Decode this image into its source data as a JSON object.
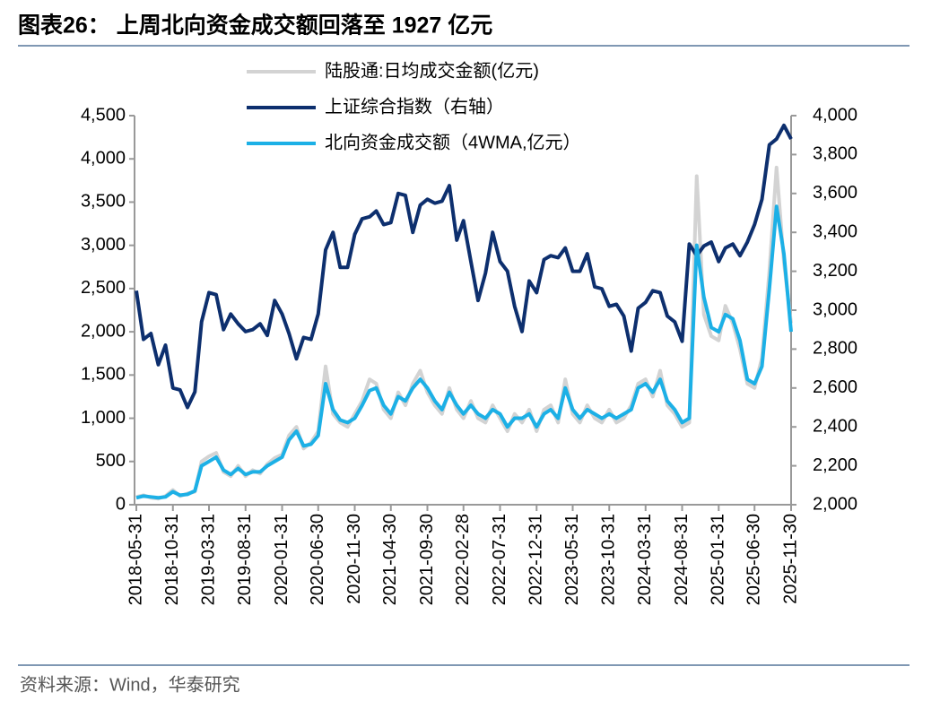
{
  "chart_data": {
    "type": "line",
    "title": "图表26：  上周北向资金成交额回落至 1927 亿元",
    "source": "资料来源：Wind，华泰研究",
    "x": [
      "2018-05-31",
      "2018-06-30",
      "2018-07-31",
      "2018-08-31",
      "2018-09-30",
      "2018-10-31",
      "2018-11-30",
      "2018-12-31",
      "2019-01-31",
      "2019-02-28",
      "2019-03-31",
      "2019-04-30",
      "2019-05-31",
      "2019-06-30",
      "2019-07-31",
      "2019-08-31",
      "2019-09-30",
      "2019-10-31",
      "2019-11-30",
      "2019-12-31",
      "2020-01-31",
      "2020-02-29",
      "2020-03-31",
      "2020-04-30",
      "2020-05-31",
      "2020-06-30",
      "2020-07-31",
      "2020-08-31",
      "2020-09-30",
      "2020-10-31",
      "2020-11-30",
      "2020-12-31",
      "2021-01-31",
      "2021-02-28",
      "2021-03-31",
      "2021-04-30",
      "2021-05-31",
      "2021-06-30",
      "2021-07-31",
      "2021-08-31",
      "2021-09-30",
      "2021-10-31",
      "2021-11-30",
      "2021-12-31",
      "2022-01-31",
      "2022-02-28",
      "2022-03-31",
      "2022-04-30",
      "2022-05-31",
      "2022-06-30",
      "2022-07-31",
      "2022-08-31",
      "2022-09-30",
      "2022-10-31",
      "2022-11-30",
      "2022-12-31",
      "2023-01-31",
      "2023-02-28",
      "2023-03-31",
      "2023-04-30",
      "2023-05-31",
      "2023-06-30",
      "2023-07-31",
      "2023-08-31",
      "2023-09-30",
      "2023-10-31",
      "2023-11-30",
      "2023-12-31",
      "2024-01-31",
      "2024-02-29",
      "2024-03-31",
      "2024-04-30",
      "2024-05-31",
      "2024-06-30",
      "2024-07-31",
      "2024-08-31",
      "2024-09-30",
      "2024-10-31",
      "2024-11-30",
      "2024-12-31",
      "2025-01-31",
      "2025-02-28",
      "2025-03-31",
      "2025-04-30",
      "2025-05-31",
      "2025-06-30",
      "2025-07-31",
      "2025-08-31",
      "2025-09-30",
      "2025-10-31",
      "2025-11-30"
    ],
    "xlim": [
      "2018-05-31",
      "2025-11-30"
    ],
    "xticks": [
      "2018-05-31",
      "2018-10-31",
      "2019-03-31",
      "2019-08-31",
      "2020-01-31",
      "2020-06-30",
      "2020-11-30",
      "2021-04-30",
      "2021-09-30",
      "2022-02-28",
      "2022-07-31",
      "2022-12-31",
      "2023-05-31",
      "2023-10-31",
      "2024-03-31",
      "2024-08-31",
      "2025-01-31",
      "2025-06-30",
      "2025-11-30"
    ],
    "ylim": [
      0,
      4500
    ],
    "yticks": [
      0,
      500,
      {
        "value": 1000,
        "label": "1,000"
      },
      {
        "value": 1500,
        "label": "1,500"
      },
      {
        "value": 2000,
        "label": "2,000"
      },
      {
        "value": 2500,
        "label": "2,500"
      },
      {
        "value": 3000,
        "label": "3,000"
      },
      {
        "value": 3500,
        "label": "3,500"
      },
      {
        "value": 4000,
        "label": "4,000"
      },
      {
        "value": 4500,
        "label": "4,500"
      }
    ],
    "y2lim": [
      2000,
      4000
    ],
    "y2ticks": [
      {
        "value": 2000,
        "label": "2,000"
      },
      {
        "value": 2200,
        "label": "2,200"
      },
      {
        "value": 2400,
        "label": "2,400"
      },
      {
        "value": 2600,
        "label": "2,600"
      },
      {
        "value": 2800,
        "label": "2,800"
      },
      {
        "value": 3000,
        "label": "3,000"
      },
      {
        "value": 3200,
        "label": "3,200"
      },
      {
        "value": 3400,
        "label": "3,400"
      },
      {
        "value": 3600,
        "label": "3,600"
      },
      {
        "value": 3800,
        "label": "3,800"
      },
      {
        "value": 4000,
        "label": "4,000"
      }
    ],
    "series": [
      {
        "name": "陆股通:日均成交金额(亿元)",
        "color": "#d3d3d3",
        "width": 4,
        "values": [
          90,
          110,
          80,
          70,
          100,
          170,
          100,
          130,
          150,
          500,
          560,
          600,
          380,
          330,
          450,
          330,
          400,
          360,
          470,
          540,
          580,
          800,
          900,
          650,
          720,
          850,
          1600,
          1050,
          950,
          900,
          1050,
          1200,
          1450,
          1400,
          1100,
          1000,
          1300,
          1150,
          1400,
          1550,
          1300,
          1150,
          1050,
          1350,
          1100,
          1000,
          1200,
          1000,
          950,
          1150,
          1000,
          850,
          1050,
          950,
          1100,
          850,
          1100,
          1150,
          950,
          1450,
          1050,
          950,
          1150,
          1000,
          950,
          1100,
          950,
          1000,
          1150,
          1400,
          1450,
          1250,
          1550,
          1150,
          1050,
          900,
          950,
          3800,
          2200,
          1950,
          1900,
          2300,
          2100,
          1800,
          1400,
          1350,
          1700,
          2700,
          3900,
          2800,
          2100
        ]
      },
      {
        "name": "上证综合指数（右轴）",
        "color": "#0d2f6e",
        "width": 4,
        "axis": "y2",
        "values": [
          3100,
          2850,
          2880,
          2720,
          2820,
          2600,
          2590,
          2500,
          2580,
          2940,
          3090,
          3080,
          2900,
          2980,
          2930,
          2890,
          2900,
          2930,
          2870,
          3050,
          2980,
          2880,
          2750,
          2860,
          2850,
          2980,
          3310,
          3400,
          3220,
          3220,
          3390,
          3470,
          3480,
          3510,
          3440,
          3450,
          3600,
          3590,
          3400,
          3540,
          3570,
          3550,
          3560,
          3640,
          3360,
          3460,
          3250,
          3050,
          3190,
          3400,
          3250,
          3200,
          3020,
          2890,
          3150,
          3090,
          3260,
          3280,
          3270,
          3320,
          3200,
          3200,
          3290,
          3120,
          3110,
          3020,
          3030,
          2970,
          2790,
          3010,
          3040,
          3100,
          3090,
          2970,
          2940,
          2840,
          3340,
          3280,
          3330,
          3350,
          3250,
          3320,
          3340,
          3280,
          3350,
          3440,
          3570,
          3850,
          3880,
          3950,
          3880
        ]
      },
      {
        "name": "北向资金成交额（4WMA,亿元）",
        "color": "#1cb0e6",
        "width": 4,
        "values": [
          80,
          100,
          90,
          80,
          90,
          150,
          110,
          120,
          160,
          450,
          500,
          550,
          400,
          350,
          420,
          350,
          380,
          380,
          450,
          500,
          550,
          750,
          850,
          680,
          700,
          800,
          1400,
          1100,
          980,
          950,
          1000,
          1150,
          1320,
          1350,
          1150,
          1050,
          1250,
          1200,
          1350,
          1450,
          1350,
          1200,
          1100,
          1300,
          1150,
          1050,
          1150,
          1050,
          1000,
          1100,
          1050,
          900,
          1000,
          1000,
          1050,
          900,
          1050,
          1100,
          1000,
          1350,
          1100,
          1000,
          1100,
          1050,
          1000,
          1050,
          1000,
          1050,
          1100,
          1350,
          1400,
          1300,
          1450,
          1200,
          1100,
          950,
          1000,
          3000,
          2400,
          2050,
          2000,
          2200,
          2150,
          1900,
          1450,
          1400,
          1600,
          2500,
          3450,
          2900,
          2000
        ]
      }
    ]
  }
}
